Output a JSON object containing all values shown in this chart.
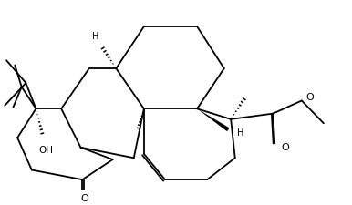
{
  "bg_color": "#ffffff",
  "line_color": "#000000",
  "lw": 1.3,
  "fig_width": 3.86,
  "fig_height": 2.25,
  "dpi": 100,
  "xlim": [
    0,
    10
  ],
  "ylim": [
    0,
    5.84
  ]
}
